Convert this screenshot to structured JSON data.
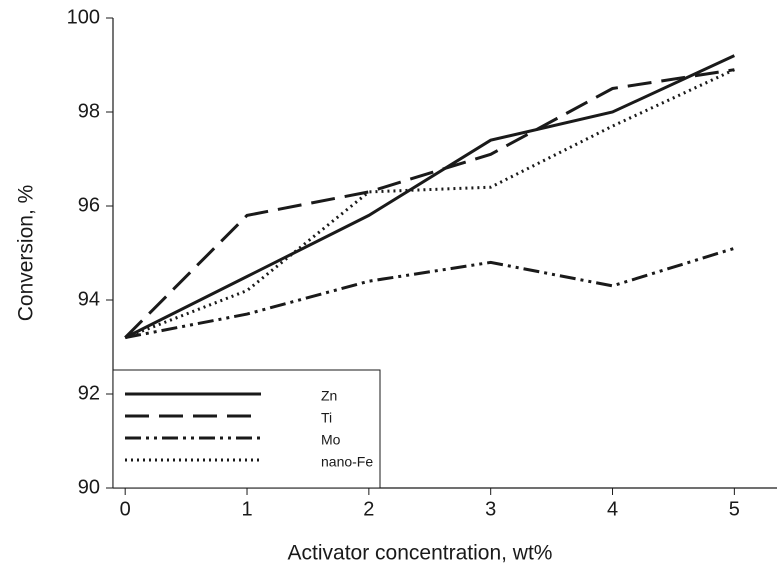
{
  "chart_data": {
    "type": "line",
    "xlabel": "Activator concentration, wt%",
    "ylabel": "Conversion, %",
    "x": [
      0,
      1,
      2,
      3,
      4,
      5
    ],
    "series": [
      {
        "name": "Zn",
        "color": "#1a1a1a",
        "dash": "solid",
        "values": [
          93.2,
          94.5,
          95.8,
          97.4,
          98.0,
          99.2
        ]
      },
      {
        "name": "Ti",
        "color": "#1a1a1a",
        "dash": "dashed",
        "values": [
          93.2,
          95.8,
          96.3,
          97.1,
          98.5,
          98.9
        ]
      },
      {
        "name": "Mo",
        "color": "#1a1a1a",
        "dash": "dashdotdot",
        "values": [
          93.2,
          93.7,
          94.4,
          94.8,
          94.3,
          95.1
        ]
      },
      {
        "name": "nano-Fe",
        "color": "#1a1a1a",
        "dash": "dotted",
        "values": [
          93.2,
          94.2,
          96.3,
          96.4,
          97.7,
          98.9
        ]
      }
    ],
    "xlim": [
      -0.1,
      5.35
    ],
    "xticks": [
      0,
      1,
      2,
      3,
      4,
      5
    ],
    "ylim": [
      90,
      100
    ],
    "yticks": [
      90,
      92,
      94,
      96,
      98,
      100
    ],
    "grid": false,
    "legend": "lower left"
  }
}
